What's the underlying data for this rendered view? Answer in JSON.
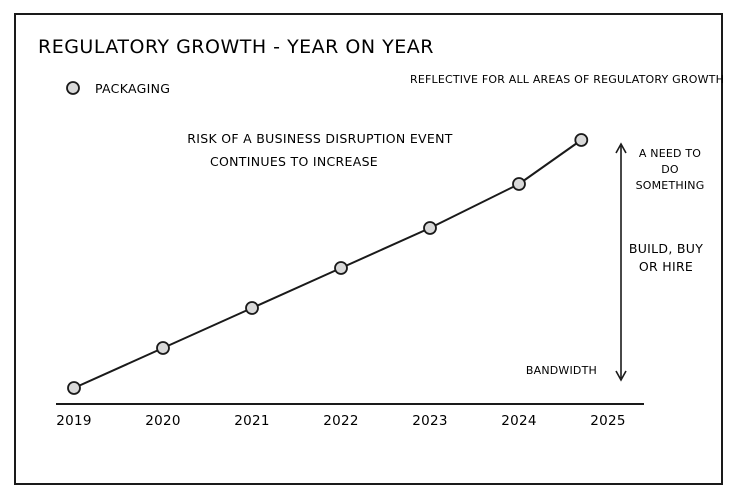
{
  "chart_data": {
    "type": "line",
    "title": "REGULATORY GROWTH - YEAR ON YEAR",
    "subtitle": "REFLECTIVE FOR ALL AREAS OF REGULATORY GROWTH",
    "annotation": "RISK OF A BUSINESS DISRUPTION EVENT CONTINUES TO INCREASE",
    "annotation_lines": [
      "RISK OF A BUSINESS DISRUPTION EVENT",
      "CONTINUES TO INCREASE"
    ],
    "x_ticks": [
      "2019",
      "2020",
      "2021",
      "2022",
      "2023",
      "2024",
      "2025"
    ],
    "series": [
      {
        "name": "PACKAGING",
        "x": [
          2019,
          2020,
          2021,
          2022,
          2023,
          2024,
          2024.7
        ],
        "values": [
          1,
          2,
          3,
          4,
          5,
          6.1,
          7.2
        ],
        "marker": "circle",
        "marker_fill": "#d9d9d9"
      }
    ],
    "ylim": [
      0.6,
      7.6
    ],
    "legend_position": "top-left",
    "right_annotations": {
      "top_lines": [
        "A NEED TO",
        "DO",
        "SOMETHING"
      ],
      "middle_lines": [
        "BUILD, BUY",
        "OR HIRE"
      ],
      "bottom": "BANDWIDTH"
    },
    "colors": {
      "line": "#1a1a1a",
      "marker_fill": "#d9d9d9"
    }
  }
}
